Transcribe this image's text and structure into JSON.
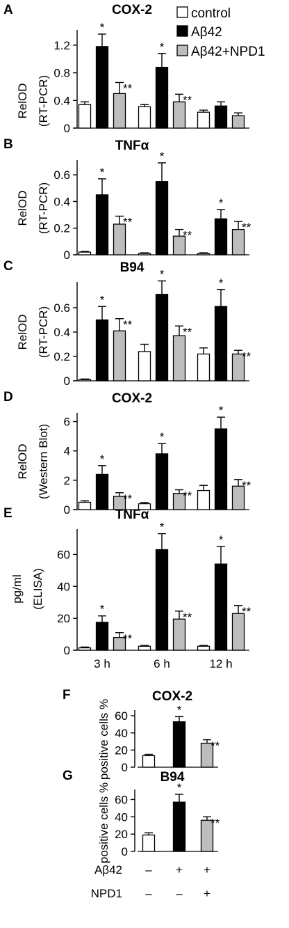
{
  "colors": {
    "control": "#ffffff",
    "abeta": "#000000",
    "npd1": "#bdbdbd",
    "stroke": "#000000"
  },
  "legend": [
    {
      "label": "control",
      "series": "control"
    },
    {
      "label": "Aβ42",
      "series": "abeta"
    },
    {
      "label": "Aβ42+NPD1",
      "series": "npd1"
    }
  ],
  "conditions": {
    "rows": [
      {
        "label": "Aβ42",
        "marks": [
          "–",
          "+",
          "+"
        ]
      },
      {
        "label": "NPD1",
        "marks": [
          "–",
          "–",
          "+"
        ]
      }
    ]
  },
  "chart_data": [
    {
      "panel": "A",
      "type": "bar",
      "title": "COX-2",
      "ylabel": [
        "RelOD",
        "(RT-PCR)"
      ],
      "ylim": [
        0,
        1.4
      ],
      "yticks": [
        {
          "v": 0,
          "t": "0"
        },
        {
          "v": 0.4,
          "t": "0.4"
        },
        {
          "v": 0.8,
          "t": "0.8"
        },
        {
          "v": 1.2,
          "t": "1.2"
        }
      ],
      "categories": [
        "3 h",
        "6 h",
        "12 h"
      ],
      "show_categories": false,
      "series": [
        {
          "key": "control",
          "values": [
            0.34,
            0.31,
            0.23
          ],
          "errors": [
            0.04,
            0.03,
            0.03
          ],
          "stars": [
            "",
            "",
            ""
          ]
        },
        {
          "key": "abeta",
          "values": [
            1.18,
            0.88,
            0.32
          ],
          "errors": [
            0.18,
            0.2,
            0.06
          ],
          "stars": [
            "*",
            "*",
            ""
          ]
        },
        {
          "key": "npd1",
          "values": [
            0.5,
            0.38,
            0.18
          ],
          "errors": [
            0.16,
            0.11,
            0.04
          ],
          "stars": [
            "**",
            "**",
            ""
          ]
        }
      ]
    },
    {
      "panel": "B",
      "type": "bar",
      "title": "TNFα",
      "ylabel": [
        "RelOD",
        "(RT-PCR)"
      ],
      "ylim": [
        0,
        0.7
      ],
      "yticks": [
        {
          "v": 0,
          "t": "0"
        },
        {
          "v": 0.2,
          "t": "0.2"
        },
        {
          "v": 0.4,
          "t": "0.4"
        },
        {
          "v": 0.6,
          "t": "0.6"
        }
      ],
      "categories": [
        "3 h",
        "6 h",
        "12 h"
      ],
      "show_categories": false,
      "series": [
        {
          "key": "control",
          "values": [
            0.02,
            0.01,
            0.01
          ],
          "errors": [
            0.005,
            0.005,
            0.005
          ],
          "stars": [
            "",
            "",
            ""
          ]
        },
        {
          "key": "abeta",
          "values": [
            0.45,
            0.55,
            0.27
          ],
          "errors": [
            0.12,
            0.14,
            0.07
          ],
          "stars": [
            "*",
            "*",
            "*"
          ]
        },
        {
          "key": "npd1",
          "values": [
            0.23,
            0.14,
            0.19
          ],
          "errors": [
            0.06,
            0.05,
            0.06
          ],
          "stars": [
            "**",
            "**",
            "**"
          ]
        }
      ]
    },
    {
      "panel": "C",
      "type": "bar",
      "title": "B94",
      "ylabel": [
        "RelOD",
        "(RT-PCR)"
      ],
      "ylim": [
        0,
        0.8
      ],
      "yticks": [
        {
          "v": 0,
          "t": "0"
        },
        {
          "v": 0.2,
          "t": "0.2"
        },
        {
          "v": 0.4,
          "t": "0.4"
        },
        {
          "v": 0.6,
          "t": "0.6"
        }
      ],
      "categories": [
        "3 h",
        "6 h",
        "12 h"
      ],
      "show_categories": false,
      "series": [
        {
          "key": "control",
          "values": [
            0.01,
            0.24,
            0.22
          ],
          "errors": [
            0.005,
            0.06,
            0.05
          ],
          "stars": [
            "",
            "",
            ""
          ]
        },
        {
          "key": "abeta",
          "values": [
            0.5,
            0.71,
            0.61
          ],
          "errors": [
            0.11,
            0.11,
            0.14
          ],
          "stars": [
            "*",
            "*",
            "*"
          ]
        },
        {
          "key": "npd1",
          "values": [
            0.41,
            0.37,
            0.22
          ],
          "errors": [
            0.1,
            0.08,
            0.03
          ],
          "stars": [
            "**",
            "**",
            "**"
          ]
        }
      ]
    },
    {
      "panel": "D",
      "type": "bar",
      "title": "COX-2",
      "ylabel": [
        "RelOD",
        "(Western Blot)"
      ],
      "ylim": [
        0,
        6.5
      ],
      "yticks": [
        {
          "v": 0,
          "t": "0"
        },
        {
          "v": 2,
          "t": "2"
        },
        {
          "v": 4,
          "t": "4"
        },
        {
          "v": 6,
          "t": "6"
        }
      ],
      "categories": [
        "3 h",
        "6 h",
        "12 h"
      ],
      "show_categories": false,
      "series": [
        {
          "key": "control",
          "values": [
            0.5,
            0.4,
            1.3
          ],
          "errors": [
            0.1,
            0.08,
            0.35
          ],
          "stars": [
            "",
            "",
            ""
          ]
        },
        {
          "key": "abeta",
          "values": [
            2.4,
            3.8,
            5.5
          ],
          "errors": [
            0.6,
            0.7,
            0.8
          ],
          "stars": [
            "*",
            "*",
            "*"
          ]
        },
        {
          "key": "npd1",
          "values": [
            0.9,
            1.1,
            1.6
          ],
          "errors": [
            0.25,
            0.25,
            0.45
          ],
          "stars": [
            "**",
            "**",
            "**"
          ]
        }
      ]
    },
    {
      "panel": "E",
      "type": "bar",
      "title": "TNFα",
      "ylabel": [
        "pg/ml",
        "(ELISA)"
      ],
      "ylim": [
        0,
        75
      ],
      "yticks": [
        {
          "v": 0,
          "t": "0"
        },
        {
          "v": 20,
          "t": "20"
        },
        {
          "v": 40,
          "t": "40"
        },
        {
          "v": 60,
          "t": "60"
        }
      ],
      "categories": [
        "3 h",
        "6 h",
        "12 h"
      ],
      "show_categories": true,
      "series": [
        {
          "key": "control",
          "values": [
            1.5,
            2.5,
            2.5
          ],
          "errors": [
            0.5,
            0.5,
            0.5
          ],
          "stars": [
            "",
            "",
            ""
          ]
        },
        {
          "key": "abeta",
          "values": [
            17.5,
            63,
            54
          ],
          "errors": [
            4,
            10,
            11
          ],
          "stars": [
            "*",
            "*",
            "*"
          ]
        },
        {
          "key": "npd1",
          "values": [
            8,
            19.5,
            23
          ],
          "errors": [
            3,
            5,
            5
          ],
          "stars": [
            "**",
            "**",
            "**"
          ]
        }
      ]
    },
    {
      "panel": "F",
      "type": "bar",
      "title": "COX-2",
      "ylabel": [
        "positive cells %"
      ],
      "ylim": [
        0,
        65
      ],
      "yticks": [
        {
          "v": 0,
          "t": "0"
        },
        {
          "v": 20,
          "t": "20"
        },
        {
          "v": 40,
          "t": "40"
        },
        {
          "v": 60,
          "t": "60"
        }
      ],
      "categories": [
        "control",
        "Aβ42",
        "Aβ42+NPD1"
      ],
      "show_categories": false,
      "series": [
        {
          "key": "mixed",
          "values": [
            13.5,
            53,
            28
          ],
          "errors": [
            1.5,
            6,
            4
          ],
          "stars": [
            "",
            "*",
            "**"
          ],
          "colors": [
            "control",
            "abeta",
            "npd1"
          ]
        }
      ]
    },
    {
      "panel": "G",
      "type": "bar",
      "title": "B94",
      "ylabel": [
        "positive cells %"
      ],
      "ylim": [
        0,
        70
      ],
      "yticks": [
        {
          "v": 0,
          "t": "0"
        },
        {
          "v": 20,
          "t": "20"
        },
        {
          "v": 40,
          "t": "40"
        },
        {
          "v": 60,
          "t": "60"
        }
      ],
      "categories": [
        "control",
        "Aβ42",
        "Aβ42+NPD1"
      ],
      "show_categories": false,
      "series": [
        {
          "key": "mixed",
          "values": [
            19,
            57,
            36
          ],
          "errors": [
            2.5,
            9,
            4
          ],
          "stars": [
            "",
            "*",
            "**"
          ],
          "colors": [
            "control",
            "abeta",
            "npd1"
          ]
        }
      ]
    }
  ]
}
